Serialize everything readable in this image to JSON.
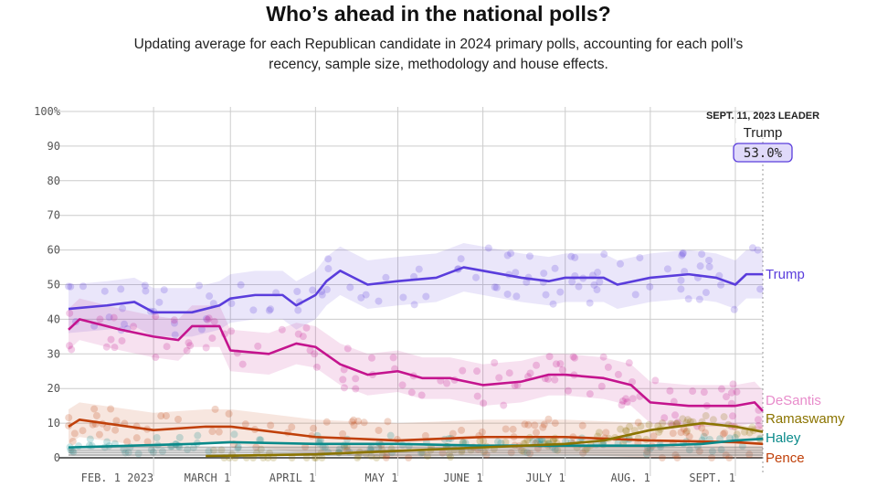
{
  "header": {
    "title": "Who’s ahead in the national polls?",
    "subtitle": "Updating average for each Republican candidate in 2024 primary polls, accounting for each poll’s recency, sample size, methodology and house effects."
  },
  "chart_data": {
    "type": "line",
    "xlim": [
      "2023-01-01",
      "2023-09-11"
    ],
    "ylim": [
      0,
      100
    ],
    "y_ticks": [
      "0",
      "10",
      "20",
      "30",
      "40",
      "50",
      "60",
      "70",
      "80",
      "90",
      "100%"
    ],
    "x_ticks": [
      {
        "date": "2023-02-01",
        "label": "FEB. 1 2023"
      },
      {
        "date": "2023-03-01",
        "label": "MARCH 1"
      },
      {
        "date": "2023-04-01",
        "label": "APRIL 1"
      },
      {
        "date": "2023-05-01",
        "label": "MAY 1"
      },
      {
        "date": "2023-06-01",
        "label": "JUNE 1"
      },
      {
        "date": "2023-07-01",
        "label": "JULY 1"
      },
      {
        "date": "2023-08-01",
        "label": "AUG. 1"
      },
      {
        "date": "2023-09-01",
        "label": "SEPT. 1"
      }
    ],
    "grid": true,
    "leader": {
      "heading": "SEPT. 11, 2023 LEADER",
      "name": "Trump",
      "value": "53.0%"
    },
    "series": [
      {
        "name": "Trump",
        "color": "#5a3ddc",
        "band": 7,
        "points": [
          [
            "2023-01-01",
            43
          ],
          [
            "2023-01-15",
            44
          ],
          [
            "2023-01-25",
            45
          ],
          [
            "2023-02-01",
            42
          ],
          [
            "2023-02-15",
            42
          ],
          [
            "2023-02-25",
            44
          ],
          [
            "2023-03-01",
            46
          ],
          [
            "2023-03-10",
            47
          ],
          [
            "2023-03-20",
            47
          ],
          [
            "2023-03-25",
            44
          ],
          [
            "2023-04-01",
            47
          ],
          [
            "2023-04-05",
            51
          ],
          [
            "2023-04-10",
            54
          ],
          [
            "2023-04-20",
            50
          ],
          [
            "2023-05-01",
            51
          ],
          [
            "2023-05-15",
            52
          ],
          [
            "2023-05-25",
            55
          ],
          [
            "2023-06-01",
            54
          ],
          [
            "2023-06-15",
            52
          ],
          [
            "2023-06-25",
            51
          ],
          [
            "2023-07-01",
            52
          ],
          [
            "2023-07-15",
            52
          ],
          [
            "2023-07-20",
            50
          ],
          [
            "2023-08-01",
            52
          ],
          [
            "2023-08-15",
            53
          ],
          [
            "2023-08-25",
            52
          ],
          [
            "2023-09-01",
            50
          ],
          [
            "2023-09-05",
            53
          ],
          [
            "2023-09-11",
            53
          ]
        ]
      },
      {
        "name": "DeSantis",
        "color": "#c4148e",
        "label_color": "#e88ccb",
        "band": 6,
        "points": [
          [
            "2023-01-01",
            37
          ],
          [
            "2023-01-05",
            40
          ],
          [
            "2023-01-20",
            37
          ],
          [
            "2023-02-01",
            35
          ],
          [
            "2023-02-10",
            34
          ],
          [
            "2023-02-15",
            38
          ],
          [
            "2023-02-25",
            38
          ],
          [
            "2023-03-01",
            31
          ],
          [
            "2023-03-15",
            30
          ],
          [
            "2023-03-25",
            33
          ],
          [
            "2023-04-01",
            32
          ],
          [
            "2023-04-10",
            27
          ],
          [
            "2023-04-20",
            24
          ],
          [
            "2023-05-01",
            25
          ],
          [
            "2023-05-10",
            23
          ],
          [
            "2023-05-20",
            23
          ],
          [
            "2023-06-01",
            21
          ],
          [
            "2023-06-15",
            22
          ],
          [
            "2023-06-25",
            24
          ],
          [
            "2023-07-01",
            24
          ],
          [
            "2023-07-15",
            23
          ],
          [
            "2023-07-25",
            21
          ],
          [
            "2023-08-01",
            16
          ],
          [
            "2023-08-15",
            15
          ],
          [
            "2023-08-25",
            15
          ],
          [
            "2023-09-01",
            15
          ],
          [
            "2023-09-08",
            16
          ],
          [
            "2023-09-11",
            13.5
          ]
        ]
      },
      {
        "name": "Ramaswamy",
        "color": "#8b7400",
        "band": 0,
        "points": [
          [
            "2023-02-20",
            0.5
          ],
          [
            "2023-04-01",
            1
          ],
          [
            "2023-05-01",
            2
          ],
          [
            "2023-06-01",
            3
          ],
          [
            "2023-07-01",
            4
          ],
          [
            "2023-07-15",
            5
          ],
          [
            "2023-08-01",
            8
          ],
          [
            "2023-08-20",
            10
          ],
          [
            "2023-09-01",
            9
          ],
          [
            "2023-09-11",
            7.5
          ]
        ]
      },
      {
        "name": "Haley",
        "color": "#0a8a8a",
        "band": 0,
        "points": [
          [
            "2023-01-01",
            3
          ],
          [
            "2023-02-15",
            4
          ],
          [
            "2023-03-01",
            4.5
          ],
          [
            "2023-04-01",
            4
          ],
          [
            "2023-05-01",
            4
          ],
          [
            "2023-06-01",
            3.5
          ],
          [
            "2023-07-01",
            3.5
          ],
          [
            "2023-08-01",
            3.5
          ],
          [
            "2023-08-20",
            4
          ],
          [
            "2023-09-01",
            5
          ],
          [
            "2023-09-11",
            5.5
          ]
        ]
      },
      {
        "name": "Pence",
        "color": "#c0400a",
        "band": 5,
        "points": [
          [
            "2023-01-01",
            9
          ],
          [
            "2023-01-05",
            11
          ],
          [
            "2023-02-01",
            8
          ],
          [
            "2023-02-20",
            9
          ],
          [
            "2023-03-01",
            9
          ],
          [
            "2023-04-01",
            6
          ],
          [
            "2023-05-01",
            5
          ],
          [
            "2023-06-01",
            6
          ],
          [
            "2023-07-01",
            6
          ],
          [
            "2023-08-01",
            5
          ],
          [
            "2023-09-01",
            4.5
          ],
          [
            "2023-09-11",
            4
          ]
        ]
      }
    ]
  }
}
